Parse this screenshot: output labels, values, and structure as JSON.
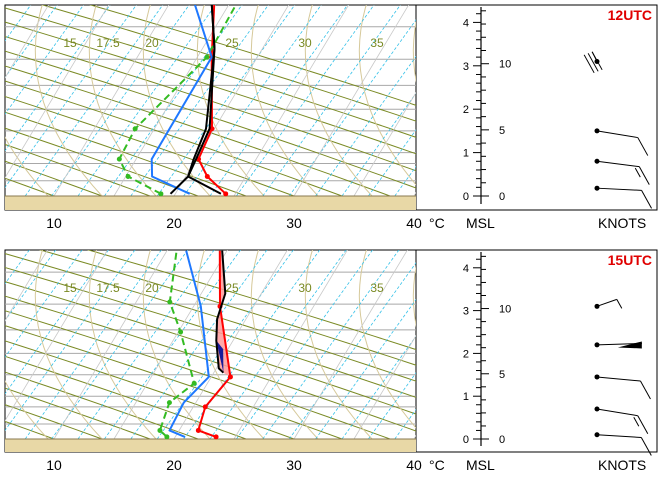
{
  "panels": [
    {
      "time_label": "12UTC",
      "skewt": {
        "x_ticks": [
          "10",
          "20",
          "30",
          "40"
        ],
        "x_unit": "°C",
        "isotherm_labels": [
          "15",
          "17.5",
          "20",
          "25",
          "30",
          "35"
        ]
      },
      "height_axis": {
        "unit": "MSL",
        "km_ticks": [
          "0",
          "1",
          "2",
          "3",
          "4"
        ],
        "kft_ticks": [
          "0",
          "5",
          "10"
        ]
      },
      "wind_axis": {
        "unit": "KNOTS"
      }
    },
    {
      "time_label": "15UTC",
      "skewt": {
        "x_ticks": [
          "10",
          "20",
          "30",
          "40"
        ],
        "x_unit": "°C",
        "isotherm_labels": [
          "15",
          "17.5",
          "20",
          "25",
          "30",
          "35"
        ]
      },
      "height_axis": {
        "unit": "MSL",
        "km_ticks": [
          "0",
          "1",
          "2",
          "3",
          "4"
        ],
        "kft_ticks": [
          "0",
          "5",
          "10"
        ]
      },
      "wind_axis": {
        "unit": "KNOTS"
      }
    }
  ],
  "chart_data": [
    {
      "type": "line",
      "time": "12UTC",
      "x_axis_label": "°C",
      "xlim": [
        7,
        40
      ],
      "ylim_km": [
        0,
        4.4
      ],
      "series": [
        {
          "color": "#ff0000",
          "points": [
            [
              24.2,
              0.05
            ],
            [
              21.8,
              0.45
            ],
            [
              20.2,
              0.85
            ],
            [
              19.8,
              1.55
            ],
            [
              16.2,
              3.2
            ],
            [
              13.8,
              4.4
            ]
          ]
        },
        {
          "color": "#33bb22",
          "points": [
            [
              18.8,
              0.05
            ],
            [
              15.2,
              0.45
            ],
            [
              13.6,
              0.85
            ],
            [
              13.4,
              1.55
            ],
            [
              15.8,
              3.2
            ],
            [
              15.6,
              4.4
            ]
          ]
        },
        {
          "color": "#1e78ff",
          "points": [
            [
              21.2,
              0.05
            ],
            [
              17.2,
              0.45
            ],
            [
              16.3,
              0.85
            ],
            [
              16.2,
              3.2
            ],
            [
              12.2,
              4.4
            ]
          ]
        },
        {
          "color": "#000000",
          "points": [
            [
              23.8,
              0.05
            ],
            [
              20.2,
              0.45
            ],
            [
              19.8,
              0.85
            ],
            [
              19.3,
              1.55
            ],
            [
              16.0,
              3.4
            ],
            [
              13.6,
              4.4
            ]
          ]
        },
        {
          "color": "#000000",
          "points": [
            [
              19.6,
              0.05
            ],
            [
              20.2,
              0.45
            ],
            [
              20.0,
              0.85
            ],
            [
              19.6,
              1.55
            ],
            [
              16.0,
              3.4
            ],
            [
              13.6,
              4.4
            ]
          ]
        }
      ],
      "wind_barbs": [
        {
          "height_km": 0.18,
          "speed_kt": 10
        },
        {
          "height_km": 0.8,
          "speed_kt": 15
        },
        {
          "height_km": 1.5,
          "speed_kt": 10
        },
        {
          "height_km": 3.1,
          "speed_kt": 30
        }
      ]
    },
    {
      "type": "line",
      "time": "15UTC",
      "x_axis_label": "°C",
      "xlim": [
        7,
        40
      ],
      "ylim_km": [
        0,
        4.4
      ],
      "series": [
        {
          "color": "#ff0000",
          "points": [
            [
              23.4,
              0.05
            ],
            [
              21.6,
              0.2
            ],
            [
              21.0,
              0.75
            ],
            [
              21.6,
              1.45
            ],
            [
              17.2,
              3.1
            ],
            [
              14.4,
              4.4
            ]
          ]
        },
        {
          "color": "#33bb22",
          "points": [
            [
              19.3,
              0.05
            ],
            [
              18.4,
              0.2
            ],
            [
              17.8,
              0.85
            ],
            [
              18.9,
              1.3
            ],
            [
              15.2,
              2.5
            ],
            [
              12.8,
              3.2
            ],
            [
              10.8,
              4.4
            ]
          ]
        },
        {
          "color": "#1e78ff",
          "points": [
            [
              20.8,
              0.05
            ],
            [
              19.2,
              0.2
            ],
            [
              19.0,
              0.85
            ],
            [
              19.8,
              1.45
            ],
            [
              15.6,
              3.1
            ],
            [
              11.6,
              4.4
            ]
          ]
        },
        {
          "color": "#000000",
          "points": [
            [
              20.8,
              1.55
            ],
            [
              20.2,
              1.65
            ],
            [
              18.6,
              2.3
            ],
            [
              17.6,
              2.8
            ],
            [
              17.0,
              3.4
            ],
            [
              14.6,
              4.4
            ]
          ]
        }
      ],
      "wind_barbs": [
        {
          "height_km": 0.1,
          "speed_kt": 10
        },
        {
          "height_km": 0.7,
          "speed_kt": 15
        },
        {
          "height_km": 1.45,
          "speed_kt": 10
        },
        {
          "height_km": 2.2,
          "speed_kt": 50
        },
        {
          "height_km": 3.1,
          "speed_kt": 5
        }
      ]
    }
  ]
}
